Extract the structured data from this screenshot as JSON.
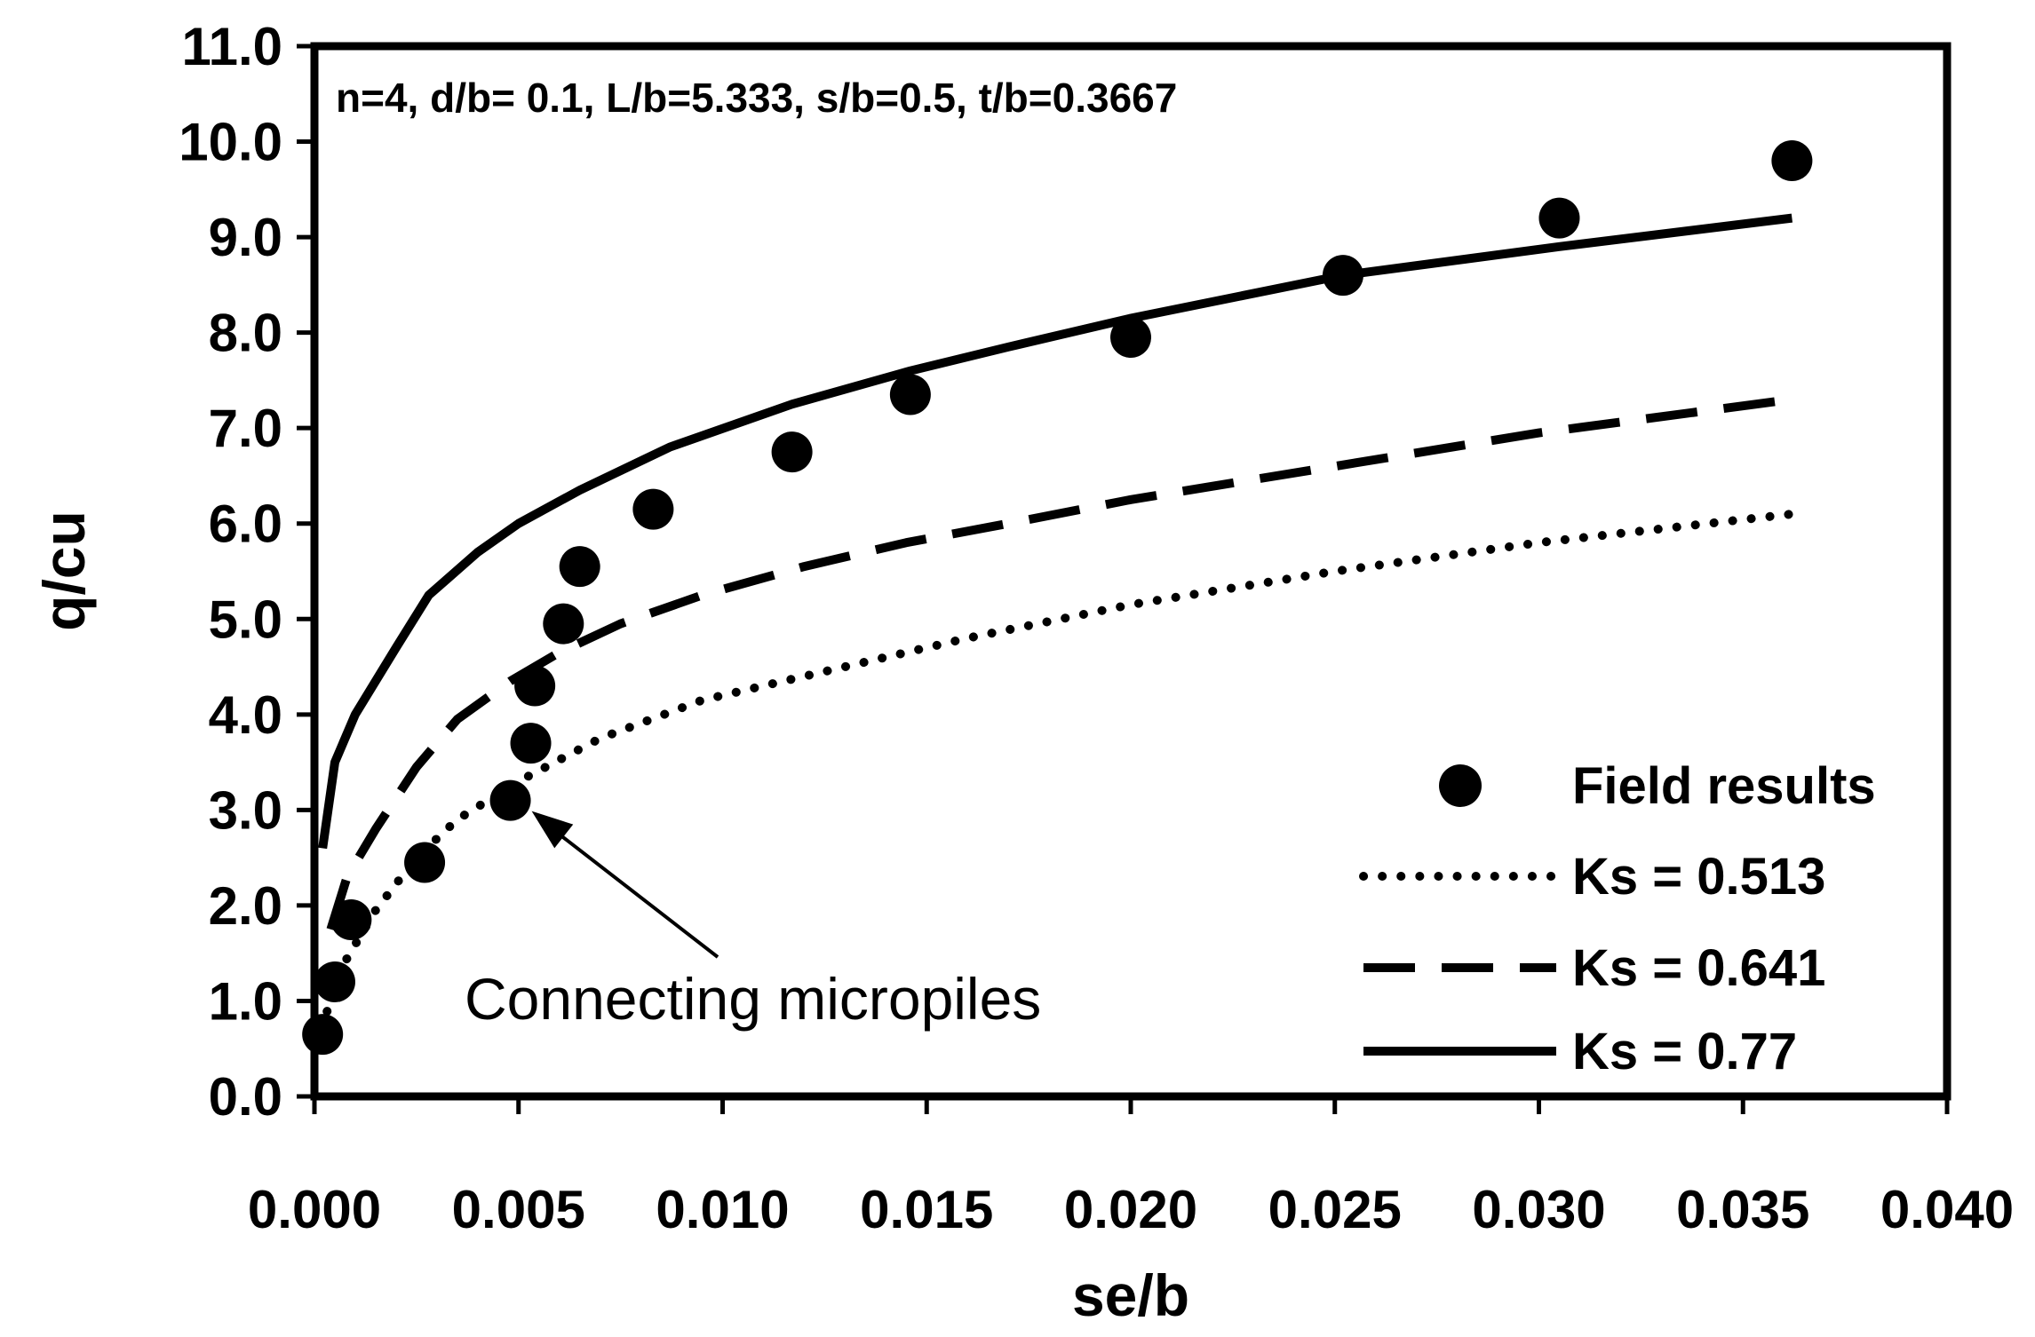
{
  "chart_data": {
    "type": "scatter",
    "xlabel": "se/b",
    "ylabel": "q/cu",
    "xlim": [
      0.0,
      0.04
    ],
    "ylim": [
      0.0,
      11.0
    ],
    "x_ticks": [
      "0.000",
      "0.005",
      "0.010",
      "0.015",
      "0.020",
      "0.025",
      "0.030",
      "0.035",
      "0.040"
    ],
    "y_ticks": [
      "0.0",
      "1.0",
      "2.0",
      "3.0",
      "4.0",
      "5.0",
      "6.0",
      "7.0",
      "8.0",
      "9.0",
      "10.0",
      "11.0"
    ],
    "grid": false,
    "legend_position": "bottom-right",
    "parameters_text": "n=4, d/b= 0.1, L/b=5.333, s/b=0.5, t/b=0.3667",
    "annotation": {
      "text": "Connecting micropiles",
      "x": 0.0048,
      "y": 3.1
    },
    "series": [
      {
        "name": "Field results",
        "style": "marker",
        "color": "#000000",
        "x": [
          0.0002,
          0.0005,
          0.0009,
          0.0027,
          0.0048,
          0.0053,
          0.0054,
          0.0061,
          0.0065,
          0.0083,
          0.0117,
          0.0146,
          0.02,
          0.0252,
          0.0305,
          0.0362
        ],
        "y": [
          0.65,
          1.2,
          1.85,
          2.45,
          3.1,
          3.7,
          4.3,
          4.95,
          5.55,
          6.15,
          6.75,
          7.35,
          7.95,
          8.6,
          9.2,
          9.8
        ]
      },
      {
        "name": "Ks = 0.513",
        "style": "dotted",
        "color": "#000000",
        "x": [
          0.0002,
          0.0004,
          0.0008,
          0.0015,
          0.0025,
          0.0035,
          0.005,
          0.007,
          0.0095,
          0.0125,
          0.016,
          0.02,
          0.025,
          0.03,
          0.0362
        ],
        "y": [
          0.7,
          1.05,
          1.45,
          1.95,
          2.5,
          2.9,
          3.3,
          3.75,
          4.15,
          4.45,
          4.8,
          5.15,
          5.5,
          5.8,
          6.1
        ]
      },
      {
        "name": "Ks = 0.641",
        "style": "dashed",
        "color": "#000000",
        "x": [
          0.0004,
          0.0008,
          0.0015,
          0.0025,
          0.0035,
          0.0048,
          0.006,
          0.0075,
          0.0095,
          0.012,
          0.0145,
          0.017,
          0.02,
          0.025,
          0.03,
          0.0362
        ],
        "y": [
          1.75,
          2.3,
          2.8,
          3.45,
          3.95,
          4.35,
          4.65,
          4.95,
          5.25,
          5.55,
          5.8,
          6.0,
          6.25,
          6.6,
          6.95,
          7.3
        ]
      },
      {
        "name": "Ks = 0.77",
        "style": "solid",
        "color": "#000000",
        "x": [
          0.0002,
          0.0005,
          0.001,
          0.002,
          0.0028,
          0.004,
          0.005,
          0.0065,
          0.0087,
          0.0117,
          0.0146,
          0.017,
          0.02,
          0.0252,
          0.0305,
          0.0362
        ],
        "y": [
          2.6,
          3.5,
          4.0,
          4.7,
          5.25,
          5.7,
          6.0,
          6.35,
          6.8,
          7.25,
          7.6,
          7.85,
          8.15,
          8.6,
          8.9,
          9.2
        ]
      }
    ]
  }
}
